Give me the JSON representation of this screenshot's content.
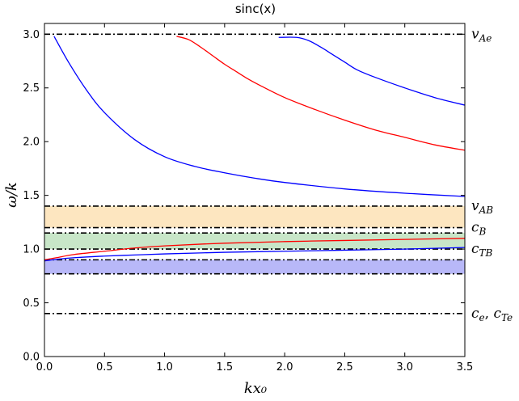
{
  "chart_data": {
    "type": "line",
    "title": "sinc(x)",
    "xlabel": "kx₀",
    "ylabel": "ω/k",
    "xlim": [
      0.0,
      3.5
    ],
    "ylim": [
      0.0,
      3.1
    ],
    "grid": false,
    "x_ticks": [
      "0.0",
      "0.5",
      "1.0",
      "1.5",
      "2.0",
      "2.5",
      "3.0",
      "3.5"
    ],
    "y_ticks": [
      "0.0",
      "0.5",
      "1.0",
      "1.5",
      "2.0",
      "2.5",
      "3.0"
    ],
    "bands": [
      {
        "y0": 1.2,
        "y1": 1.4,
        "color": "#fde6c0"
      },
      {
        "y0": 1.0,
        "y1": 1.15,
        "color": "#c8e6c8"
      },
      {
        "y0": 0.77,
        "y1": 0.9,
        "color": "#b8b8f8"
      }
    ],
    "reference_lines": [
      {
        "y": 3.0,
        "label_base": "v",
        "label_sub": "Ae"
      },
      {
        "y": 1.4,
        "label_base": "v",
        "label_sub": "AB"
      },
      {
        "y": 1.2,
        "label_base": "c",
        "label_sub": "B"
      },
      {
        "y": 1.15,
        "label_base": "",
        "label_sub": ""
      },
      {
        "y": 1.0,
        "label_base": "c",
        "label_sub": "TB"
      },
      {
        "y": 0.9,
        "label_base": "",
        "label_sub": ""
      },
      {
        "y": 0.77,
        "label_base": "",
        "label_sub": ""
      },
      {
        "y": 0.4,
        "label_base": "c",
        "label_sub": "e",
        "label_extra_base": "c",
        "label_extra_sub": "Te"
      }
    ],
    "series": [
      {
        "color": "#0000ff",
        "x": [
          0.08,
          0.2,
          0.35,
          0.5,
          0.75,
          1.0,
          1.25,
          1.5,
          1.75,
          2.0,
          2.5,
          3.0,
          3.5
        ],
        "y": [
          2.98,
          2.74,
          2.48,
          2.27,
          2.02,
          1.86,
          1.77,
          1.71,
          1.66,
          1.62,
          1.56,
          1.52,
          1.49
        ]
      },
      {
        "color": "#ff0000",
        "x": [
          1.1,
          1.2,
          1.3,
          1.4,
          1.5,
          1.6,
          1.7,
          1.8,
          2.0,
          2.25,
          2.5,
          2.75,
          3.0,
          3.25,
          3.5
        ],
        "y": [
          2.98,
          2.95,
          2.88,
          2.8,
          2.72,
          2.65,
          2.58,
          2.52,
          2.41,
          2.3,
          2.2,
          2.11,
          2.04,
          1.97,
          1.92
        ]
      },
      {
        "color": "#0000ff",
        "x": [
          1.95,
          2.1,
          2.2,
          2.3,
          2.4,
          2.5,
          2.6,
          2.75,
          3.0,
          3.25,
          3.5
        ],
        "y": [
          2.97,
          2.97,
          2.94,
          2.88,
          2.81,
          2.74,
          2.67,
          2.6,
          2.5,
          2.41,
          2.34
        ]
      },
      {
        "color": "#ff0000",
        "x": [
          0.0,
          0.1,
          0.25,
          0.5,
          0.75,
          1.0,
          1.5,
          2.0,
          2.5,
          3.0,
          3.5
        ],
        "y": [
          0.9,
          0.92,
          0.95,
          0.98,
          1.01,
          1.03,
          1.055,
          1.07,
          1.08,
          1.09,
          1.1
        ]
      },
      {
        "color": "#0000ff",
        "x": [
          0.0,
          0.1,
          0.25,
          0.5,
          0.75,
          1.0,
          1.5,
          2.0,
          2.5,
          3.0,
          3.5
        ],
        "y": [
          0.89,
          0.905,
          0.92,
          0.935,
          0.945,
          0.955,
          0.97,
          0.98,
          0.99,
          1.0,
          1.015
        ]
      }
    ]
  }
}
